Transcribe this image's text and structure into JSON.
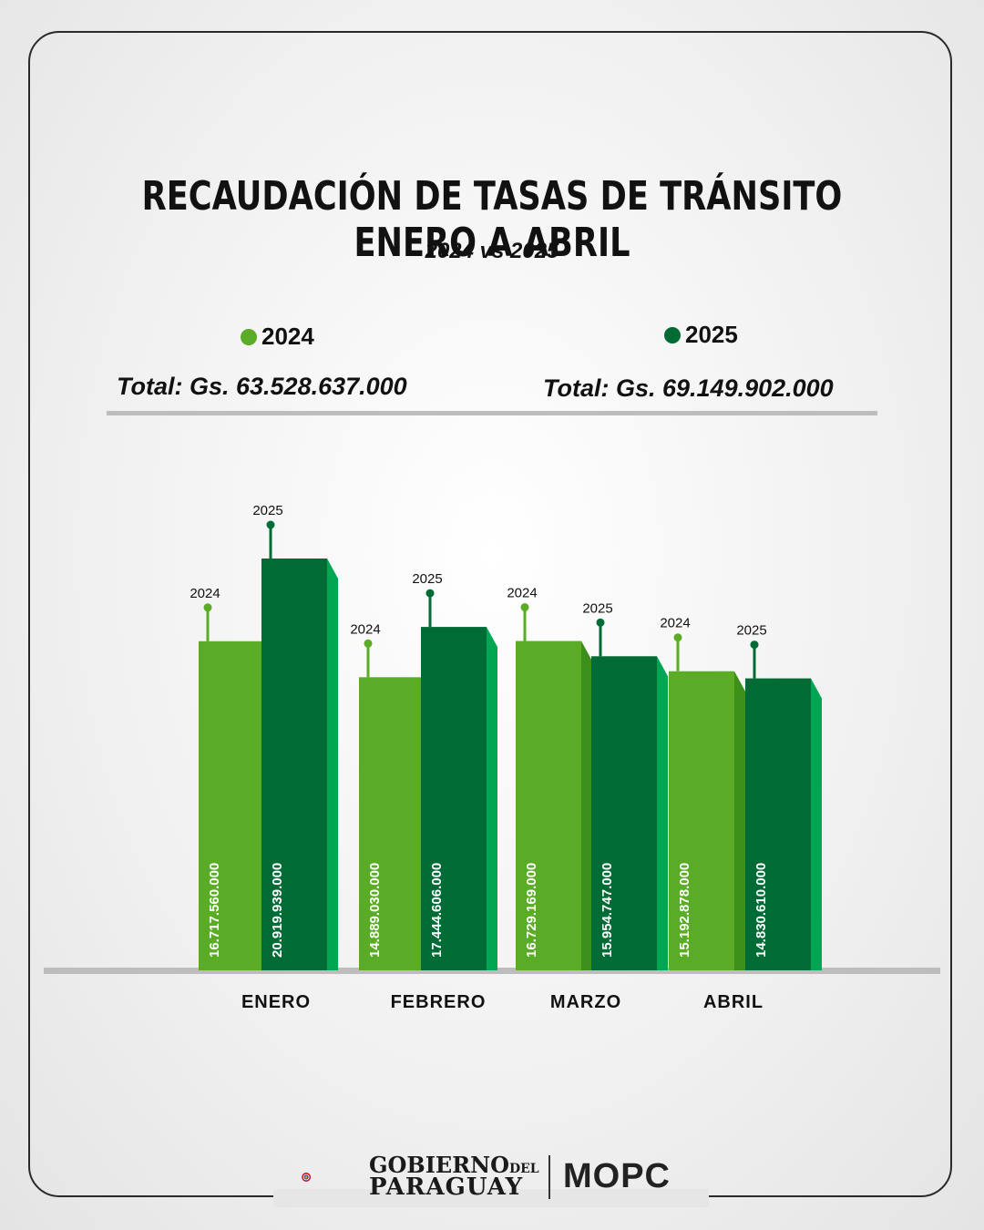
{
  "title": "RECAUDACIÓN DE TASAS DE TRÁNSITO ENERO A ABRIL",
  "subtitle": "2024 vs 2025",
  "legend": [
    {
      "label": "2024",
      "color": "#5aab25",
      "total": "Total: Gs. 63.528.637.000"
    },
    {
      "label": "2025",
      "color": "#006b35",
      "total": "Total: Gs. 69.149.902.000"
    }
  ],
  "chart_data": {
    "type": "bar",
    "title": "RECAUDACIÓN DE TASAS DE TRÁNSITO ENERO A ABRIL",
    "subtitle": "2024 vs 2025",
    "categories": [
      "ENERO",
      "FEBRERO",
      "MARZO",
      "ABRIL"
    ],
    "series": [
      {
        "name": "2024",
        "color": "#5aab25",
        "values": [
          16717560000,
          14889030000,
          16729169000,
          15192878000
        ],
        "labels": [
          "16.717.560.000",
          "14.889.030.000",
          "16.729.169.000",
          "15.192.878.000"
        ]
      },
      {
        "name": "2025",
        "color": "#006b35",
        "values": [
          20919939000,
          17444606000,
          15954747000,
          14830610000
        ],
        "labels": [
          "20.919.939.000",
          "17.444.606.000",
          "15.954.747.000",
          "14.830.610.000"
        ]
      }
    ],
    "grid": false,
    "legend_position": "top"
  },
  "footer": {
    "gobierno_line1": "GOBIERNO",
    "gobierno_del": "DEL",
    "gobierno_line2": "PARAGUAY",
    "mopc": "MOPC",
    "logo_icon": "paraguay-coat-of-arms-icon"
  }
}
